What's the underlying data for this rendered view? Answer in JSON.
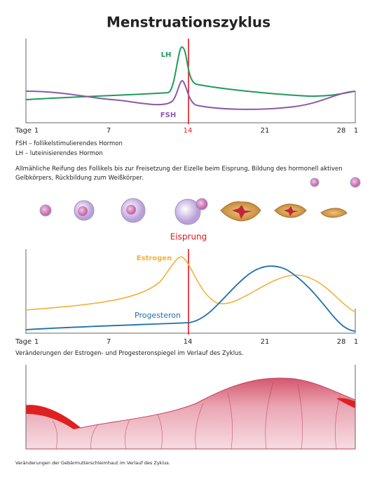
{
  "title": "Menstruationszyklus",
  "hormone_chart": {
    "x_label": "Tage",
    "x_ticks": [
      "1",
      "7",
      "14",
      "21",
      "28",
      "1"
    ],
    "series_labels": [
      "LH",
      "FSH"
    ]
  },
  "legend": [
    "FSH – follikelstimulierendes Hormon",
    "LH – luteinisierendes Hormon"
  ],
  "follicle_caption": "Allmähliche Reifung des Follikels bis zur Freisetzung der Eizelle beim Eisprung, Bildung des hormonell aktiven Gelbkörpers, Rückbildung zum Weißkörper.",
  "ovulation_label": "Eisprung",
  "steroid_chart": {
    "x_label": "Tage",
    "x_ticks": [
      "1",
      "7",
      "14",
      "21",
      "28",
      "1"
    ],
    "series_labels": [
      "Estrogen",
      "Progesteron"
    ]
  },
  "steroid_caption": "Veränderungen der Estrogen- und Progesteronspiegel im Verlauf des Zyklus.",
  "endometrium_caption": "Veränderungen der Gebärmutterschleimhaut im Verlauf des Zyklus."
}
